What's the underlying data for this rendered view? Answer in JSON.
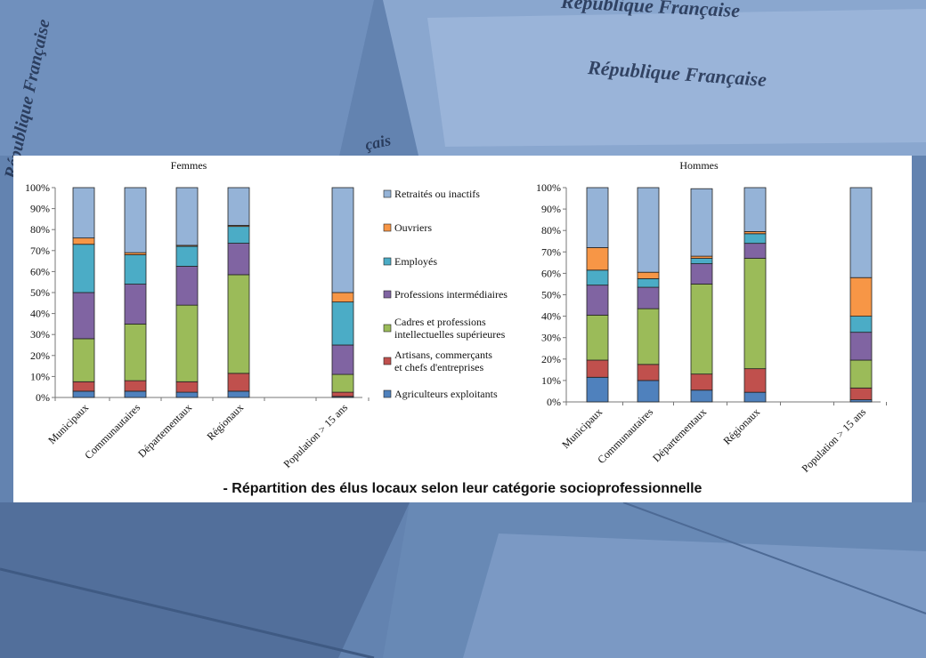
{
  "background": {
    "texts": [
      "République Française",
      "République Française",
      "République Française",
      "çais"
    ]
  },
  "caption": "- Répartition des élus locaux selon leur catégorie socioprofessionnelle",
  "chart_data": [
    {
      "type": "bar",
      "stacked": true,
      "title": "Femmes",
      "categories": [
        "Municipaux",
        "Communautaires",
        "Départementaux",
        "Régionaux",
        "",
        "Population > 15 ans"
      ],
      "ylim": [
        0,
        100
      ],
      "yticks": [
        "0%",
        "10%",
        "20%",
        "30%",
        "40%",
        "50%",
        "60%",
        "70%",
        "80%",
        "90%",
        "100%"
      ],
      "legend": "right",
      "series": [
        {
          "name": "Agriculteurs exploitants",
          "color": "#4f81bd",
          "values": [
            3,
            3,
            2.5,
            3,
            null,
            0.5
          ]
        },
        {
          "name": "Artisans, commerçants et chefs d'entreprises",
          "color": "#c0504d",
          "values": [
            4.5,
            5,
            5,
            8.5,
            null,
            2
          ]
        },
        {
          "name": "Cadres et professions intellectuelles supérieures",
          "color": "#9bbb59",
          "values": [
            20.5,
            27,
            36.5,
            47,
            null,
            8.5
          ]
        },
        {
          "name": "Professions intermédiaires",
          "color": "#8064a2",
          "values": [
            22,
            19,
            18.5,
            15,
            null,
            14
          ]
        },
        {
          "name": "Employés",
          "color": "#4bacc6",
          "values": [
            23,
            14,
            9.5,
            8,
            null,
            20.5
          ]
        },
        {
          "name": "Ouvriers",
          "color": "#f79646",
          "values": [
            3,
            1,
            0.5,
            0.5,
            null,
            4.5
          ]
        },
        {
          "name": "Retraités ou inactifs",
          "color": "#95b3d7",
          "values": [
            24,
            31,
            27.5,
            18,
            null,
            50
          ]
        }
      ]
    },
    {
      "type": "bar",
      "stacked": true,
      "title": "Hommes",
      "categories": [
        "Municipaux",
        "Communautaires",
        "Départementaux",
        "Régionaux",
        "",
        "Population > 15 ans"
      ],
      "ylim": [
        0,
        100
      ],
      "yticks": [
        "0%",
        "10%",
        "20%",
        "30%",
        "40%",
        "50%",
        "60%",
        "70%",
        "80%",
        "90%",
        "100%"
      ],
      "series": [
        {
          "name": "Agriculteurs exploitants",
          "color": "#4f81bd",
          "values": [
            11.5,
            10,
            5.5,
            4.5,
            null,
            1
          ]
        },
        {
          "name": "Artisans, commerçants et chefs d'entreprises",
          "color": "#c0504d",
          "values": [
            8,
            7.5,
            7.5,
            11,
            null,
            5.5
          ]
        },
        {
          "name": "Cadres et professions intellectuelles supérieures",
          "color": "#9bbb59",
          "values": [
            21,
            26,
            42,
            51.5,
            null,
            13
          ]
        },
        {
          "name": "Professions intermédiaires",
          "color": "#8064a2",
          "values": [
            14,
            10,
            9.5,
            7,
            null,
            13
          ]
        },
        {
          "name": "Employés",
          "color": "#4bacc6",
          "values": [
            7,
            4,
            2.5,
            4.5,
            null,
            7.5
          ]
        },
        {
          "name": "Ouvriers",
          "color": "#f79646",
          "values": [
            10.5,
            3,
            1,
            1,
            null,
            18
          ]
        },
        {
          "name": "Retraités ou inactifs",
          "color": "#95b3d7",
          "values": [
            28,
            39.5,
            31.5,
            20.5,
            null,
            42
          ]
        }
      ]
    }
  ]
}
